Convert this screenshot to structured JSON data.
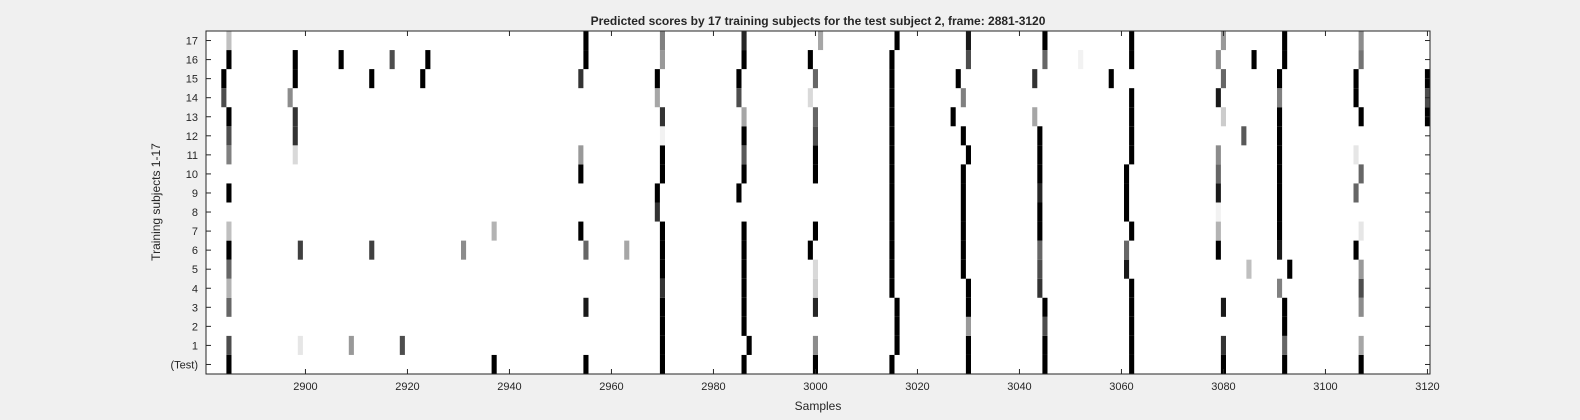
{
  "chart_data": {
    "type": "heatmap",
    "title": "Predicted scores by 17 training subjects for the test subject 2, frame: 2881-3120",
    "xlabel": "Samples",
    "ylabel": "Training subjects 1-17",
    "xlim": [
      2881,
      3120
    ],
    "x_ticks": [
      2900,
      2920,
      2940,
      2960,
      2980,
      3000,
      3020,
      3040,
      3060,
      3080,
      3100,
      3120
    ],
    "rows": [
      "(Test)",
      "1",
      "2",
      "3",
      "4",
      "5",
      "6",
      "7",
      "8",
      "9",
      "10",
      "11",
      "12",
      "13",
      "14",
      "15",
      "16",
      "17"
    ],
    "value_range": [
      0,
      1
    ],
    "colormap": "gray-inverted",
    "background_color": "#ffffff",
    "mark_color": "#000000",
    "marks": [
      {
        "row": "(Test)",
        "points": [
          [
            2885,
            1
          ],
          [
            2937,
            1
          ],
          [
            2955,
            1
          ],
          [
            2970,
            1
          ],
          [
            2986,
            1
          ],
          [
            3000,
            1
          ],
          [
            3015,
            1
          ],
          [
            3030,
            1
          ],
          [
            3045,
            1
          ],
          [
            3062,
            1
          ],
          [
            3080,
            1
          ],
          [
            3092,
            1
          ],
          [
            3107,
            1
          ]
        ]
      },
      {
        "row": "1",
        "points": [
          [
            2885,
            0.7
          ],
          [
            2899,
            0.1
          ],
          [
            2909,
            0.4
          ],
          [
            2919,
            0.7
          ],
          [
            2970,
            1
          ],
          [
            2987,
            1
          ],
          [
            3000,
            0.45
          ],
          [
            3016,
            1
          ],
          [
            3030,
            1
          ],
          [
            3045,
            1
          ],
          [
            3062,
            1
          ],
          [
            3080,
            0.8
          ],
          [
            3092,
            0.6
          ],
          [
            3107,
            0.35
          ]
        ]
      },
      {
        "row": "2",
        "points": [
          [
            2970,
            1
          ],
          [
            2986,
            1
          ],
          [
            3016,
            1
          ],
          [
            3030,
            0.4
          ],
          [
            3045,
            0.7
          ],
          [
            3062,
            1
          ],
          [
            3092,
            1
          ]
        ]
      },
      {
        "row": "3",
        "points": [
          [
            2885,
            0.6
          ],
          [
            2955,
            0.9
          ],
          [
            2970,
            1
          ],
          [
            2986,
            1
          ],
          [
            3000,
            0.85
          ],
          [
            3016,
            1
          ],
          [
            3030,
            1
          ],
          [
            3045,
            1
          ],
          [
            3062,
            1
          ],
          [
            3080,
            0.9
          ],
          [
            3092,
            1
          ],
          [
            3107,
            0.45
          ]
        ]
      },
      {
        "row": "4",
        "points": [
          [
            2885,
            0.3
          ],
          [
            2970,
            0.8
          ],
          [
            2986,
            1
          ],
          [
            3000,
            0.2
          ],
          [
            3015,
            1
          ],
          [
            3030,
            1
          ],
          [
            3044,
            0.8
          ],
          [
            3062,
            1
          ],
          [
            3091,
            0.5
          ],
          [
            3107,
            0.7
          ]
        ]
      },
      {
        "row": "5",
        "points": [
          [
            2885,
            0.6
          ],
          [
            2970,
            1
          ],
          [
            2986,
            1
          ],
          [
            3000,
            0.15
          ],
          [
            3015,
            1
          ],
          [
            3029,
            1
          ],
          [
            3044,
            0.7
          ],
          [
            3061,
            0.9
          ],
          [
            3085,
            0.25
          ],
          [
            3093,
            1
          ],
          [
            3107,
            0.4
          ]
        ]
      },
      {
        "row": "6",
        "points": [
          [
            2885,
            1
          ],
          [
            2899,
            0.75
          ],
          [
            2913,
            0.75
          ],
          [
            2931,
            0.45
          ],
          [
            2955,
            0.6
          ],
          [
            2963,
            0.35
          ],
          [
            2970,
            1
          ],
          [
            2986,
            1
          ],
          [
            2999,
            1
          ],
          [
            3015,
            1
          ],
          [
            3029,
            1
          ],
          [
            3044,
            0.6
          ],
          [
            3061,
            0.6
          ],
          [
            3079,
            1
          ],
          [
            3091,
            0.9
          ],
          [
            3106,
            1
          ]
        ]
      },
      {
        "row": "7",
        "points": [
          [
            2885,
            0.25
          ],
          [
            2937,
            0.3
          ],
          [
            2954,
            1
          ],
          [
            2970,
            1
          ],
          [
            2986,
            1
          ],
          [
            3000,
            1
          ],
          [
            3015,
            1
          ],
          [
            3029,
            1
          ],
          [
            3044,
            1
          ],
          [
            3062,
            1
          ],
          [
            3079,
            0.3
          ],
          [
            3091,
            1
          ],
          [
            3107,
            0.1
          ]
        ]
      },
      {
        "row": "8",
        "points": [
          [
            2969,
            0.8
          ],
          [
            3015,
            1
          ],
          [
            3029,
            1
          ],
          [
            3044,
            1
          ],
          [
            3061,
            1
          ],
          [
            3079,
            0.05
          ],
          [
            3091,
            1
          ]
        ]
      },
      {
        "row": "9",
        "points": [
          [
            2885,
            1
          ],
          [
            2969,
            1
          ],
          [
            2985,
            1
          ],
          [
            3015,
            1
          ],
          [
            3029,
            1
          ],
          [
            3044,
            0.85
          ],
          [
            3061,
            1
          ],
          [
            3079,
            0.9
          ],
          [
            3091,
            1
          ],
          [
            3106,
            0.6
          ]
        ]
      },
      {
        "row": "10",
        "points": [
          [
            2954,
            1
          ],
          [
            2970,
            1
          ],
          [
            2986,
            1
          ],
          [
            3000,
            1
          ],
          [
            3015,
            1
          ],
          [
            3029,
            1
          ],
          [
            3044,
            1
          ],
          [
            3061,
            1
          ],
          [
            3079,
            0.6
          ],
          [
            3091,
            1
          ],
          [
            3107,
            0.6
          ]
        ]
      },
      {
        "row": "11",
        "points": [
          [
            2885,
            0.5
          ],
          [
            2898,
            0.15
          ],
          [
            2954,
            0.4
          ],
          [
            2970,
            1
          ],
          [
            2986,
            0.65
          ],
          [
            3000,
            1
          ],
          [
            3015,
            1
          ],
          [
            3030,
            1
          ],
          [
            3044,
            1
          ],
          [
            3062,
            1
          ],
          [
            3079,
            0.45
          ],
          [
            3091,
            1
          ],
          [
            3106,
            0.1
          ]
        ]
      },
      {
        "row": "12",
        "points": [
          [
            2885,
            0.7
          ],
          [
            2898,
            0.8
          ],
          [
            2970,
            0.05
          ],
          [
            2986,
            1
          ],
          [
            3000,
            0.7
          ],
          [
            3015,
            1
          ],
          [
            3029,
            1
          ],
          [
            3044,
            1
          ],
          [
            3062,
            1
          ],
          [
            3084,
            0.65
          ],
          [
            3091,
            1
          ]
        ]
      },
      {
        "row": "13",
        "points": [
          [
            2885,
            1
          ],
          [
            2898,
            0.8
          ],
          [
            2970,
            0.8
          ],
          [
            2986,
            0.35
          ],
          [
            3000,
            0.6
          ],
          [
            3015,
            1
          ],
          [
            3027,
            1
          ],
          [
            3043,
            0.35
          ],
          [
            3062,
            1
          ],
          [
            3080,
            0.2
          ],
          [
            3091,
            1
          ],
          [
            3107,
            1
          ],
          [
            3120,
            1
          ]
        ]
      },
      {
        "row": "14",
        "points": [
          [
            2884,
            0.7
          ],
          [
            2897,
            0.45
          ],
          [
            2969,
            0.35
          ],
          [
            2985,
            0.7
          ],
          [
            2999,
            0.15
          ],
          [
            3015,
            1
          ],
          [
            3029,
            0.5
          ],
          [
            3062,
            1
          ],
          [
            3079,
            0.9
          ],
          [
            3091,
            0.5
          ],
          [
            3106,
            1
          ],
          [
            3120,
            0.7
          ]
        ]
      },
      {
        "row": "15",
        "points": [
          [
            2884,
            1
          ],
          [
            2898,
            1
          ],
          [
            2913,
            1
          ],
          [
            2923,
            1
          ],
          [
            2954,
            0.8
          ],
          [
            2969,
            1
          ],
          [
            2985,
            1
          ],
          [
            3000,
            0.6
          ],
          [
            3015,
            1
          ],
          [
            3028,
            1
          ],
          [
            3043,
            0.8
          ],
          [
            3058,
            1
          ],
          [
            3080,
            0.6
          ],
          [
            3091,
            1
          ],
          [
            3106,
            1
          ],
          [
            3120,
            1
          ]
        ]
      },
      {
        "row": "16",
        "points": [
          [
            2885,
            1
          ],
          [
            2898,
            1
          ],
          [
            2907,
            1
          ],
          [
            2917,
            0.7
          ],
          [
            2924,
            1
          ],
          [
            2955,
            1
          ],
          [
            2970,
            0.4
          ],
          [
            2986,
            1
          ],
          [
            2999,
            1
          ],
          [
            3015,
            1
          ],
          [
            3030,
            0.7
          ],
          [
            3045,
            0.6
          ],
          [
            3052,
            0.05
          ],
          [
            3062,
            1
          ],
          [
            3079,
            0.45
          ],
          [
            3086,
            1
          ],
          [
            3092,
            1
          ],
          [
            3107,
            0.55
          ]
        ]
      },
      {
        "row": "17",
        "points": [
          [
            2885,
            0.25
          ],
          [
            2955,
            1
          ],
          [
            2970,
            0.5
          ],
          [
            2986,
            0.85
          ],
          [
            3001,
            0.35
          ],
          [
            3016,
            1
          ],
          [
            3030,
            0.9
          ],
          [
            3045,
            1
          ],
          [
            3062,
            1
          ],
          [
            3080,
            0.4
          ],
          [
            3092,
            1
          ],
          [
            3107,
            0.45
          ]
        ]
      }
    ],
    "grid": false,
    "legend": "none"
  }
}
